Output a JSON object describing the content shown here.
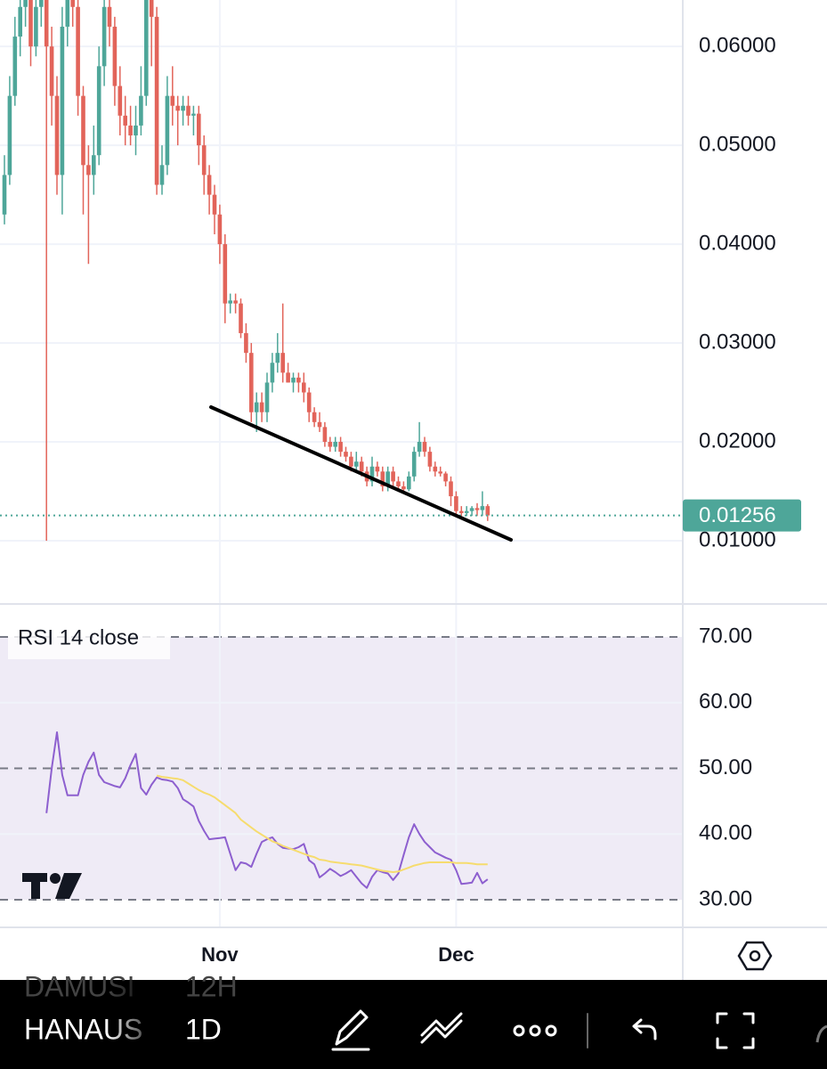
{
  "chart_data": [
    {
      "type": "candlestick",
      "categories": [
        null,
        null,
        null,
        null,
        null,
        null,
        null,
        null,
        null,
        null,
        null,
        null,
        null,
        null,
        null,
        null,
        null,
        null,
        null,
        null,
        null,
        null,
        null,
        null,
        null,
        null,
        null,
        null,
        null,
        null,
        null,
        null,
        null,
        null,
        null,
        null,
        null,
        null,
        null,
        null,
        null,
        "Nov",
        null,
        null,
        null,
        null,
        null,
        null,
        null,
        null,
        null,
        null,
        null,
        null,
        null,
        null,
        null,
        null,
        null,
        null,
        null,
        null,
        null,
        null,
        null,
        null,
        null,
        null,
        null,
        null,
        null,
        null,
        null,
        null,
        null,
        null,
        null,
        null,
        null,
        null,
        null,
        null,
        null,
        null,
        null,
        null,
        "Dec",
        null,
        null,
        null,
        null,
        null,
        null
      ],
      "up_color": "#4ea699",
      "down_color": "#e2645a",
      "last_price_color": "#4ea699",
      "values": [
        [
          0.043,
          0.049,
          0.042,
          0.047
        ],
        [
          0.047,
          0.057,
          0.046,
          0.055
        ],
        [
          0.055,
          0.063,
          0.054,
          0.061
        ],
        [
          0.061,
          0.066,
          0.059,
          0.064
        ],
        [
          0.064,
          0.067,
          0.062,
          0.065
        ],
        [
          0.065,
          0.066,
          0.058,
          0.06
        ],
        [
          0.06,
          0.066,
          0.059,
          0.064
        ],
        [
          0.064,
          0.067,
          0.062,
          0.066
        ],
        [
          0.066,
          0.067,
          0.01,
          0.06
        ],
        [
          0.06,
          0.062,
          0.052,
          0.055
        ],
        [
          0.055,
          0.057,
          0.045,
          0.047
        ],
        [
          0.047,
          0.064,
          0.043,
          0.062
        ],
        [
          0.062,
          0.067,
          0.06,
          0.066
        ],
        [
          0.066,
          0.067,
          0.062,
          0.064
        ],
        [
          0.064,
          0.065,
          0.053,
          0.055
        ],
        [
          0.055,
          0.056,
          0.043,
          0.048
        ],
        [
          0.048,
          0.05,
          0.038,
          0.047
        ],
        [
          0.047,
          0.052,
          0.045,
          0.049
        ],
        [
          0.049,
          0.06,
          0.048,
          0.058
        ],
        [
          0.058,
          0.066,
          0.056,
          0.064
        ],
        [
          0.064,
          0.066,
          0.06,
          0.062
        ],
        [
          0.062,
          0.063,
          0.054,
          0.056
        ],
        [
          0.056,
          0.058,
          0.051,
          0.053
        ],
        [
          0.053,
          0.055,
          0.05,
          0.052
        ],
        [
          0.052,
          0.054,
          0.05,
          0.051
        ],
        [
          0.051,
          0.054,
          0.049,
          0.052
        ],
        [
          0.052,
          0.058,
          0.051,
          0.055
        ],
        [
          0.055,
          0.067,
          0.054,
          0.065
        ],
        [
          0.065,
          0.066,
          0.058,
          0.063
        ],
        [
          0.063,
          0.064,
          0.045,
          0.046
        ],
        [
          0.046,
          0.05,
          0.045,
          0.048
        ],
        [
          0.048,
          0.057,
          0.047,
          0.055
        ],
        [
          0.055,
          0.058,
          0.052,
          0.054
        ],
        [
          0.054,
          0.055,
          0.05,
          0.0535
        ],
        [
          0.0535,
          0.055,
          0.052,
          0.054
        ],
        [
          0.054,
          0.055,
          0.052,
          0.053
        ],
        [
          0.053,
          0.054,
          0.051,
          0.0532
        ],
        [
          0.0532,
          0.054,
          0.048,
          0.05
        ],
        [
          0.05,
          0.051,
          0.045,
          0.047
        ],
        [
          0.047,
          0.048,
          0.043,
          0.045
        ],
        [
          0.045,
          0.046,
          0.041,
          0.043
        ],
        [
          0.043,
          0.044,
          0.038,
          0.04
        ],
        [
          0.04,
          0.041,
          0.032,
          0.034
        ],
        [
          0.034,
          0.035,
          0.033,
          0.0343
        ],
        [
          0.0343,
          0.035,
          0.033,
          0.034
        ],
        [
          0.034,
          0.0345,
          0.0305,
          0.031
        ],
        [
          0.031,
          0.032,
          0.028,
          0.029
        ],
        [
          0.029,
          0.03,
          0.022,
          0.023
        ],
        [
          0.023,
          0.025,
          0.021,
          0.024
        ],
        [
          0.024,
          0.025,
          0.022,
          0.023
        ],
        [
          0.023,
          0.027,
          0.022,
          0.026
        ],
        [
          0.026,
          0.029,
          0.025,
          0.028
        ],
        [
          0.028,
          0.031,
          0.027,
          0.029
        ],
        [
          0.029,
          0.034,
          0.026,
          0.027
        ],
        [
          0.027,
          0.028,
          0.026,
          0.026
        ],
        [
          0.026,
          0.027,
          0.025,
          0.0265
        ],
        [
          0.0265,
          0.027,
          0.025,
          0.026
        ],
        [
          0.026,
          0.027,
          0.024,
          0.025
        ],
        [
          0.025,
          0.0255,
          0.022,
          0.023
        ],
        [
          0.023,
          0.0235,
          0.0215,
          0.022
        ],
        [
          0.022,
          0.023,
          0.021,
          0.0215
        ],
        [
          0.0215,
          0.022,
          0.0195,
          0.02
        ],
        [
          0.02,
          0.0205,
          0.019,
          0.0195
        ],
        [
          0.0195,
          0.0205,
          0.019,
          0.02
        ],
        [
          0.02,
          0.0205,
          0.0185,
          0.019
        ],
        [
          0.019,
          0.0195,
          0.018,
          0.0185
        ],
        [
          0.0185,
          0.019,
          0.017,
          0.0175
        ],
        [
          0.0175,
          0.019,
          0.017,
          0.018
        ],
        [
          0.018,
          0.0185,
          0.0165,
          0.017
        ],
        [
          0.017,
          0.0175,
          0.0155,
          0.016
        ],
        [
          0.016,
          0.0185,
          0.0155,
          0.0175
        ],
        [
          0.0175,
          0.018,
          0.0165,
          0.017
        ],
        [
          0.017,
          0.0175,
          0.015,
          0.0155
        ],
        [
          0.0155,
          0.0175,
          0.015,
          0.017
        ],
        [
          0.017,
          0.0175,
          0.0155,
          0.016
        ],
        [
          0.016,
          0.0165,
          0.0152,
          0.0155
        ],
        [
          0.0155,
          0.016,
          0.015,
          0.0152
        ],
        [
          0.0152,
          0.017,
          0.015,
          0.0165
        ],
        [
          0.0165,
          0.0195,
          0.016,
          0.019
        ],
        [
          0.019,
          0.022,
          0.0185,
          0.02
        ],
        [
          0.02,
          0.0205,
          0.0185,
          0.019
        ],
        [
          0.019,
          0.0195,
          0.017,
          0.0175
        ],
        [
          0.0175,
          0.018,
          0.0165,
          0.017
        ],
        [
          0.017,
          0.0175,
          0.0165,
          0.0168
        ],
        [
          0.0168,
          0.017,
          0.0155,
          0.016
        ],
        [
          0.016,
          0.0165,
          0.0135,
          0.0145
        ],
        [
          0.0145,
          0.015,
          0.0125,
          0.013
        ],
        [
          0.013,
          0.0135,
          0.0125,
          0.0128
        ],
        [
          0.0128,
          0.0135,
          0.0125,
          0.013
        ],
        [
          0.013,
          0.0135,
          0.0125,
          0.0133
        ],
        [
          0.0133,
          0.0138,
          0.0125,
          0.0131
        ],
        [
          0.0131,
          0.015,
          0.0125,
          0.0135
        ],
        [
          0.0135,
          0.0137,
          0.012,
          0.01256
        ]
      ],
      "ylim": [
        0.0036,
        0.0647
      ],
      "yticks": [
        {
          "value": 0.01,
          "label": "0.01000"
        },
        {
          "value": 0.02,
          "label": "0.02000"
        },
        {
          "value": 0.03,
          "label": "0.03000"
        },
        {
          "value": 0.04,
          "label": "0.04000"
        },
        {
          "value": 0.05,
          "label": "0.05000"
        },
        {
          "value": 0.06,
          "label": "0.06000"
        }
      ],
      "grid": true
    },
    {
      "type": "line",
      "title": "RSI 14 close",
      "band_color": "#efebf6",
      "series": [
        {
          "color": "#8d5fcf",
          "values": [
            null,
            null,
            null,
            null,
            null,
            null,
            null,
            null,
            43.2,
            50,
            55.5,
            49,
            45.9,
            45.9,
            45.9,
            49,
            51,
            52.4,
            49,
            47.9,
            47.6,
            47.3,
            47.1,
            48.5,
            50.5,
            52.2,
            47,
            46,
            47.5,
            48.6,
            48.3,
            48.2,
            48,
            47,
            45.3,
            44.8,
            44.2,
            42,
            40.5,
            39.2,
            39.3,
            39.4,
            39.5,
            37,
            34.5,
            35.7,
            35.5,
            35,
            37,
            38.8,
            39.2,
            39.5,
            38.5,
            37.9,
            37.8,
            37.7,
            38,
            38.5,
            36,
            35.4,
            33.4,
            34,
            34.7,
            34.2,
            33.6,
            34,
            34.5,
            33.5,
            32.5,
            31.8,
            33.5,
            34.5,
            34.2,
            34,
            33,
            34,
            36.8,
            39.5,
            41.5,
            40,
            38.8,
            38,
            37.2,
            36.8,
            36.4,
            36.1,
            34.5,
            32.4,
            32.5,
            32.6,
            34.1,
            32.5,
            33.1
          ]
        },
        {
          "color": "#f6dc6e",
          "values": [
            null,
            null,
            null,
            null,
            null,
            null,
            null,
            null,
            null,
            null,
            null,
            null,
            null,
            null,
            null,
            null,
            null,
            null,
            null,
            null,
            null,
            null,
            null,
            null,
            null,
            null,
            null,
            null,
            null,
            48.9,
            48.7,
            48.6,
            48.5,
            48.4,
            48.2,
            47.7,
            47.2,
            46.7,
            46.3,
            46,
            45.6,
            45,
            44.4,
            43.8,
            43.2,
            42.2,
            41.6,
            41,
            40.4,
            39.9,
            39.4,
            38.9,
            38.6,
            38.2,
            37.9,
            37.6,
            37.3,
            37,
            36.7,
            36.5,
            36.1,
            36,
            35.8,
            35.7,
            35.6,
            35.5,
            35.4,
            35.3,
            35.2,
            35,
            34.8,
            34.6,
            34.4,
            34.3,
            34.2,
            34.3,
            34.6,
            34.9,
            35.2,
            35.4,
            35.6,
            35.7,
            35.7,
            35.7,
            35.7,
            35.7,
            35.6,
            35.6,
            35.6,
            35.5,
            35.4,
            35.4,
            35.4
          ]
        }
      ],
      "ylim": [
        25.93,
        74.75
      ],
      "yticks": [
        {
          "value": 70,
          "label": "70.00"
        },
        {
          "value": 60,
          "label": "60.00"
        },
        {
          "value": 50,
          "label": "50.00"
        },
        {
          "value": 40,
          "label": "40.00"
        },
        {
          "value": 30,
          "label": "30.00"
        }
      ],
      "grid": true
    }
  ],
  "toolbar": {
    "items": [
      {
        "symbol": "DAMUSI",
        "interval": "12H"
      },
      {
        "symbol": "HANAUS",
        "interval": "1D"
      }
    ]
  }
}
